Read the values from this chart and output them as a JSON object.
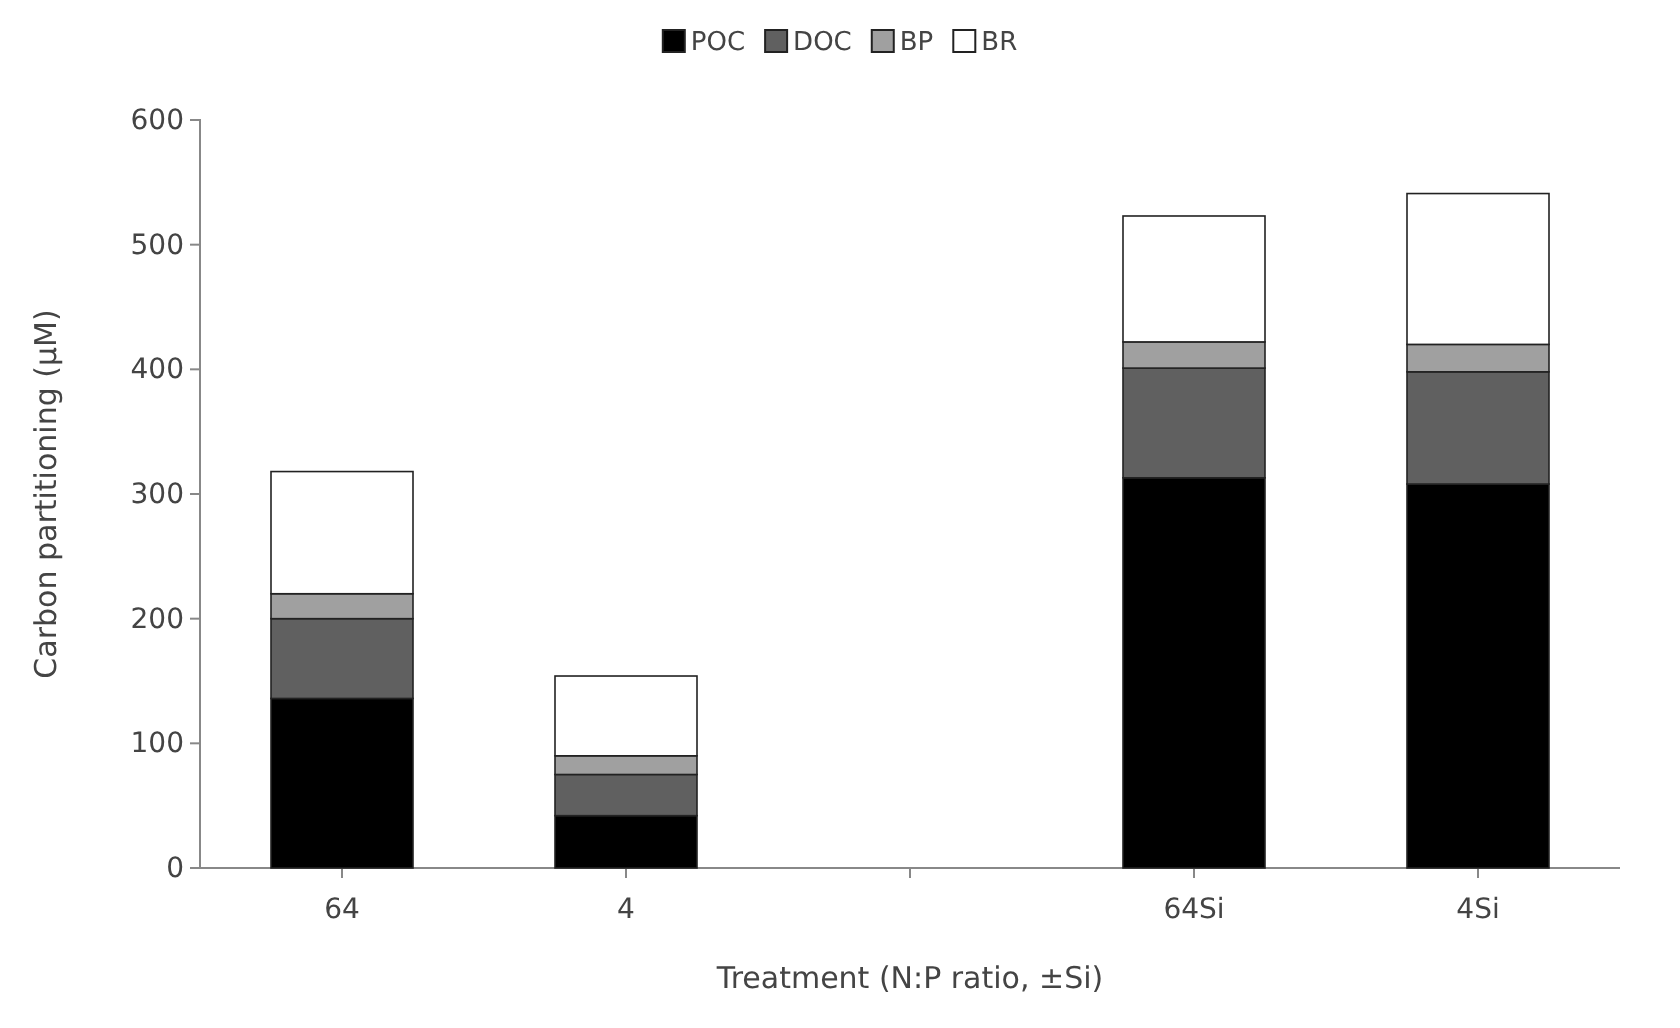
{
  "chart_data": {
    "type": "bar",
    "stacked": true,
    "xlabel": "Treatment (N:P ratio, ±Si)",
    "ylabel": "Carbon partitioning (µM)",
    "categories": [
      "64",
      "4",
      null,
      "64Si",
      "4Si"
    ],
    "series": [
      {
        "name": "POC",
        "color": "#000000",
        "values": [
          136,
          42,
          null,
          313,
          308
        ]
      },
      {
        "name": "DOC",
        "color": "#606060",
        "values": [
          64,
          33,
          null,
          88,
          90
        ]
      },
      {
        "name": "BP",
        "color": "#a0a0a0",
        "values": [
          20,
          15,
          null,
          21,
          22
        ]
      },
      {
        "name": "BR",
        "color": "#ffffff",
        "values": [
          98,
          64,
          null,
          101,
          121
        ]
      }
    ],
    "ylim": [
      0,
      600
    ],
    "yticks": [
      0,
      100,
      200,
      300,
      400,
      500,
      600
    ],
    "grid": false,
    "legend": "top"
  }
}
